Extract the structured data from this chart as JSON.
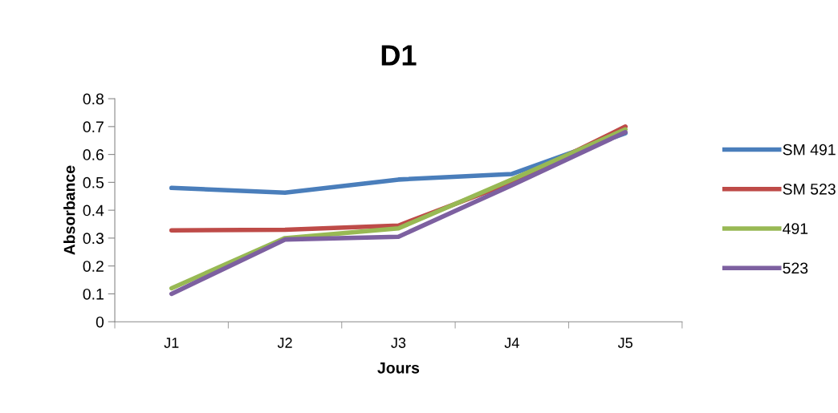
{
  "chart_data": {
    "type": "line",
    "title": "D1",
    "xlabel": "Jours",
    "ylabel": "Absorbance",
    "categories": [
      "J1",
      "J2",
      "J3",
      "J4",
      "J5"
    ],
    "series": [
      {
        "name": "SM 491",
        "color": "#4a7ebb",
        "values": [
          0.48,
          0.463,
          0.51,
          0.53,
          0.676
        ]
      },
      {
        "name": "SM 523",
        "color": "#be4b48",
        "values": [
          0.328,
          0.33,
          0.345,
          0.5,
          0.7
        ]
      },
      {
        "name": "491",
        "color": "#98b954",
        "values": [
          0.12,
          0.3,
          0.335,
          0.51,
          0.69
        ]
      },
      {
        "name": "523",
        "color": "#7d60a0",
        "values": [
          0.1,
          0.295,
          0.305,
          0.49,
          0.68
        ]
      }
    ],
    "ylim": [
      0,
      0.8
    ],
    "yticks": [
      0,
      0.1,
      0.2,
      0.3,
      0.4,
      0.5,
      0.6,
      0.7,
      0.8
    ],
    "grid": false,
    "legend": "right",
    "marker": "none",
    "line_style": "solid"
  }
}
